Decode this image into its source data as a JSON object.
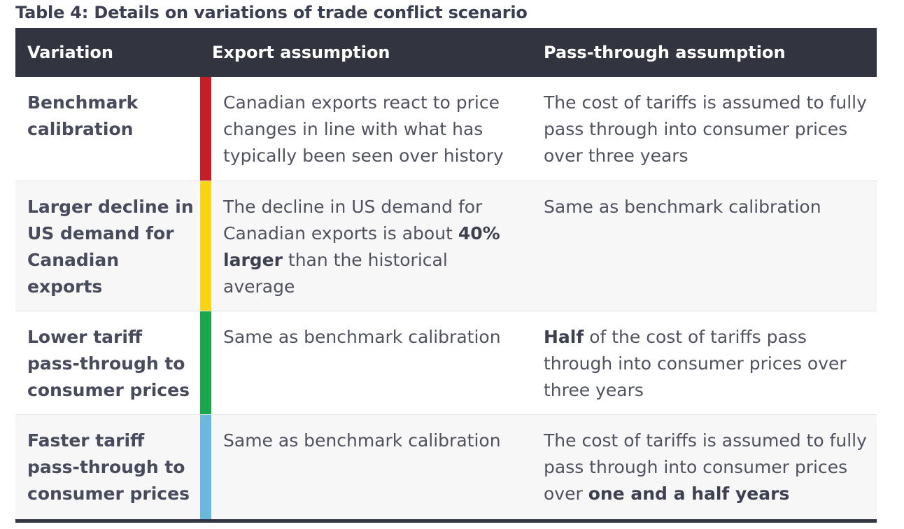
{
  "title": "Table 4: Details on variations of trade conflict scenario",
  "headers": {
    "variation": "Variation",
    "export": "Export assumption",
    "pass_through": "Pass-through assumption"
  },
  "rows": [
    {
      "variation": "Benchmark calibration",
      "bar_color": "#c22026",
      "export": {
        "pre": "Canadian exports react to price changes in line with what has typically been seen over history",
        "bold": "",
        "post": ""
      },
      "pass_through": {
        "pre": "The cost of tariffs is assumed to fully pass through into consumer prices over three years",
        "bold": "",
        "post": ""
      }
    },
    {
      "variation": "Larger decline in US demand for Canadian exports",
      "bar_color": "#f7d417",
      "export": {
        "pre": "The decline in US demand for Canadian exports is about ",
        "bold": "40% larger",
        "post": " than the historical average"
      },
      "pass_through": {
        "pre": "Same as benchmark calibration",
        "bold": "",
        "post": ""
      }
    },
    {
      "variation": "Lower tariff pass-through to consumer prices",
      "bar_color": "#1aa64a",
      "export": {
        "pre": "Same as benchmark calibration",
        "bold": "",
        "post": ""
      },
      "pass_through": {
        "pre": "",
        "bold": "Half",
        "post": " of the cost of tariffs pass through into consumer prices over three years"
      }
    },
    {
      "variation": "Faster tariff pass-through to consumer prices",
      "bar_color": "#6bb7dd",
      "export": {
        "pre": "Same as benchmark calibration",
        "bold": "",
        "post": ""
      },
      "pass_through": {
        "pre": "The cost of tariffs is assumed to fully pass through into consumer prices over ",
        "bold": "one and a half years",
        "post": ""
      }
    }
  ]
}
